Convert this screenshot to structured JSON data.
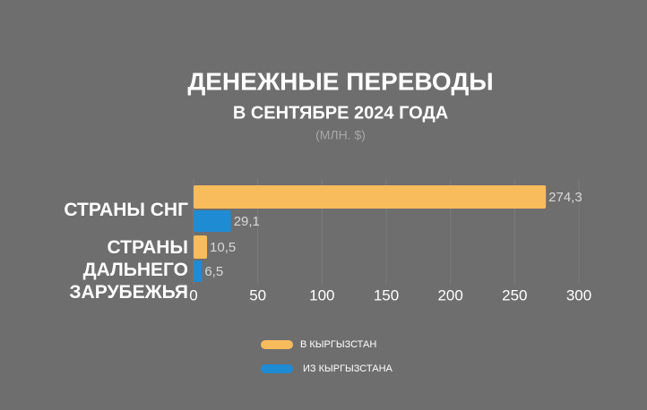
{
  "chart_data": {
    "type": "bar",
    "orientation": "horizontal",
    "title": "ДЕНЕЖНЫЕ ПЕРЕВОДЫ",
    "subtitle": "В СЕНТЯБРЕ 2024 ГОДА",
    "unit": "(МЛН. $)",
    "categories": [
      "СТРАНЫ СНГ",
      "СТРАНЫ ДАЛЬНЕГО ЗАРУБЕЖЬЯ"
    ],
    "series": [
      {
        "name": "В КЫРГЫЗСТАН",
        "color": "#f9bc5c",
        "values": [
          274.3,
          10.5
        ],
        "value_labels": [
          "274,3",
          "10,5"
        ]
      },
      {
        "name": "ИЗ КЫРГЫЗСТАНА",
        "color": "#1f8bd3",
        "values": [
          29.1,
          6.5
        ],
        "value_labels": [
          "29,1",
          "6,5"
        ]
      }
    ],
    "xlim": [
      0,
      300
    ],
    "xticks": [
      0,
      50,
      100,
      150,
      200,
      250,
      300
    ],
    "grid": true,
    "legend": "bottom"
  }
}
